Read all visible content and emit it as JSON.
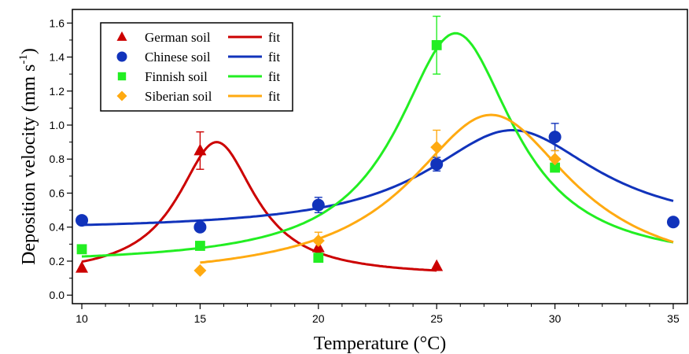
{
  "chart_data": {
    "type": "scatter",
    "xlabel": "Temperature (°C)",
    "ylabel": "Deposition velocity (mm s",
    "ylabel_sup": "-1",
    "ylabel_close": ")",
    "xlim": [
      9.6,
      35.6
    ],
    "ylim": [
      -0.05,
      1.68
    ],
    "xticks": [
      10,
      15,
      20,
      25,
      30,
      35
    ],
    "yticks": [
      0.0,
      0.2,
      0.4,
      0.6,
      0.8,
      1.0,
      1.2,
      1.4,
      1.6
    ],
    "ytick_labels": [
      "0.0",
      "0.2",
      "0.4",
      "0.6",
      "0.8",
      "1.0",
      "1.2",
      "1.4",
      "1.6"
    ],
    "grid": false,
    "legend_position": "top-left",
    "fit_label": "fit",
    "series": [
      {
        "name": "German soil",
        "color": "#cc0000",
        "marker": "triangle",
        "x": [
          10,
          15,
          20,
          25
        ],
        "y": [
          0.16,
          0.85,
          0.28,
          0.17
        ],
        "err": [
          0,
          0.11,
          0,
          0
        ],
        "fit": {
          "x0": 15.7,
          "peak": 0.79,
          "base": 0.11,
          "w": 2.0,
          "range": [
            10,
            25
          ]
        }
      },
      {
        "name": "Chinese soil",
        "color": "#1133bb",
        "marker": "circle",
        "x": [
          10,
          15,
          20,
          25,
          30,
          35
        ],
        "y": [
          0.44,
          0.4,
          0.53,
          0.77,
          0.93,
          0.43
        ],
        "err": [
          0,
          0,
          0.045,
          0.04,
          0.08,
          0
        ],
        "fit": {
          "x0": 28.2,
          "peak": 0.59,
          "base": 0.38,
          "w": 4.4,
          "range": [
            10,
            35
          ]
        }
      },
      {
        "name": "Finnish soil",
        "color": "#22ee22",
        "marker": "square",
        "x": [
          10,
          15,
          20,
          25,
          30
        ],
        "y": [
          0.27,
          0.29,
          0.22,
          1.47,
          0.75
        ],
        "err": [
          0,
          0,
          0,
          0.17,
          0
        ],
        "fit": {
          "x0": 25.8,
          "peak": 1.36,
          "base": 0.18,
          "w": 3.0,
          "range": [
            10,
            35
          ]
        }
      },
      {
        "name": "Siberian soil",
        "color": "#ffaa11",
        "marker": "diamond",
        "x": [
          15,
          20,
          25,
          30
        ],
        "y": [
          0.145,
          0.32,
          0.87,
          0.8
        ],
        "err": [
          0,
          0.05,
          0.1,
          0.05
        ],
        "fit": {
          "x0": 27.3,
          "peak": 0.97,
          "base": 0.09,
          "w": 4.2,
          "range": [
            15,
            35
          ]
        }
      }
    ]
  }
}
